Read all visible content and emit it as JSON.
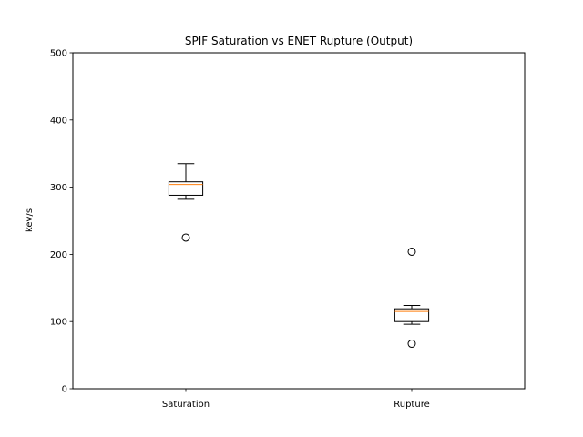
{
  "chart_data": {
    "type": "boxplot",
    "title": "SPIF Saturation vs ENET Rupture (Output)",
    "xlabel": "",
    "ylabel": "kev/s",
    "ylim": [
      0,
      500
    ],
    "yticks": [
      0,
      100,
      200,
      300,
      400,
      500
    ],
    "grid": false,
    "categories": [
      "Saturation",
      "Rupture"
    ],
    "boxes": [
      {
        "category": "Saturation",
        "whisker_low": 282,
        "q1": 288,
        "median": 304,
        "q3": 308,
        "whisker_high": 335,
        "outliers": [
          225
        ]
      },
      {
        "category": "Rupture",
        "whisker_low": 96,
        "q1": 100,
        "median": 115,
        "q3": 119,
        "whisker_high": 124,
        "outliers": [
          204,
          67
        ]
      }
    ],
    "colors": {
      "box": "#000000",
      "median": "#ff7f0e",
      "outlier": "#000000"
    }
  }
}
